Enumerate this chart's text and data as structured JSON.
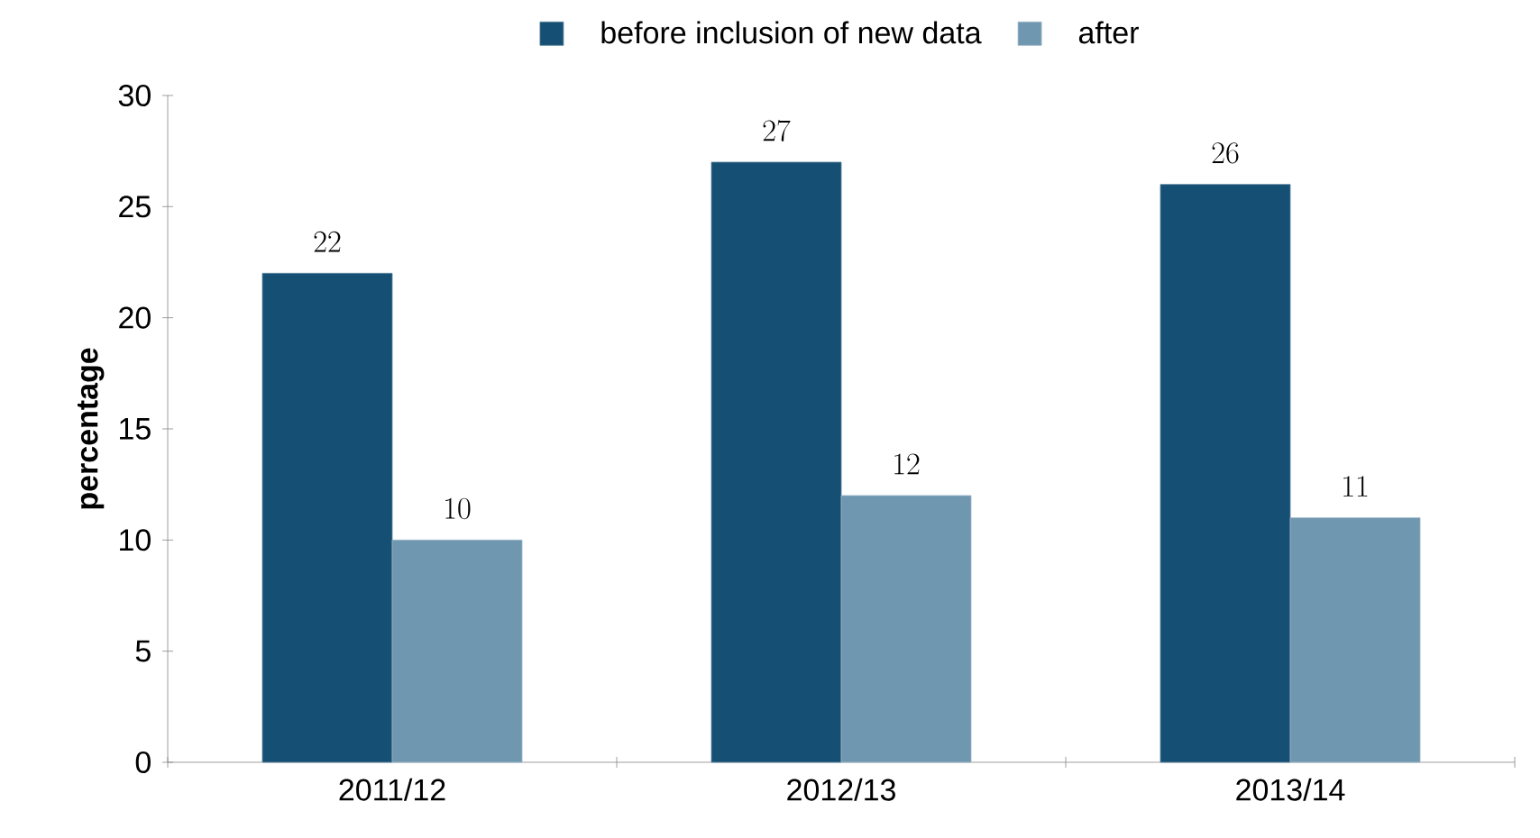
{
  "chart_data": {
    "type": "bar",
    "ylabel": "percentage",
    "categories": [
      "2011/12",
      "2012/13",
      "2013/14"
    ],
    "series": [
      {
        "name": "before inclusion of new data",
        "color": "#164f74",
        "values": [
          22,
          27,
          26
        ]
      },
      {
        "name": "after",
        "color": "#7097b0",
        "values": [
          10,
          12,
          11
        ]
      }
    ],
    "ylim": [
      0,
      30
    ],
    "yticks": [
      0,
      5,
      10,
      15,
      20,
      25,
      30
    ],
    "data_labels": true,
    "legend": "top",
    "grid": false
  }
}
